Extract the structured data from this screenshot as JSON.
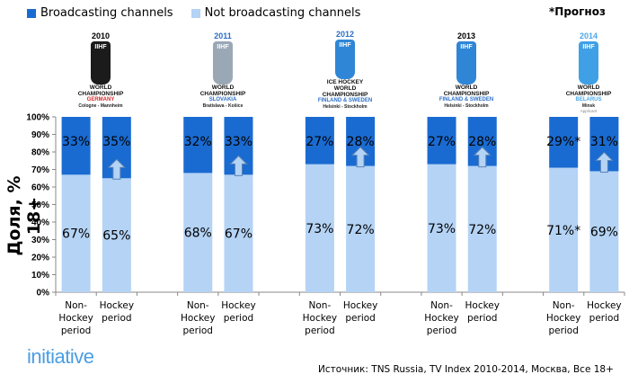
{
  "legend": [
    {
      "label": "Broadcasting channels",
      "color": "#1a6bd1"
    },
    {
      "label": "Not broadcasting channels",
      "color": "#b4d3f5"
    }
  ],
  "forecast_note": "*Прогноз",
  "initiative_logo": "initiative",
  "source": "Источник: TNS Russia, TV Index 2010-2014, Москва, Все 18+",
  "logos": [
    {
      "year": "2010",
      "lines": [
        "WORLD",
        "CHAMPIONSHIP"
      ],
      "country": "GERMANY",
      "country_color": "#d42a2a",
      "city": "Cologne - Mannheim",
      "note": "",
      "shield_color": "#1b1b1b",
      "year_color": "#000000"
    },
    {
      "year": "2011",
      "lines": [
        "WORLD",
        "CHAMPIONSHIP"
      ],
      "country": "SLOVAKIA",
      "country_color": "#2a6fc9",
      "city": "Bratislava - Košice",
      "note": "",
      "shield_color": "#9aa8b6",
      "year_color": "#2a6fc9"
    },
    {
      "year": "2012",
      "lines": [
        "ICE HOCKEY",
        "WORLD",
        "CHAMPIONSHIP"
      ],
      "country": "FINLAND & SWEDEN",
      "country_color": "#2a6fc9",
      "city": "Helsinki - Stockholm",
      "note": "",
      "shield_color": "#2f86d6",
      "year_color": "#2a6fc9"
    },
    {
      "year": "2013",
      "lines": [
        "WORLD",
        "CHAMPIONSHIP"
      ],
      "country": "FINLAND & SWEDEN",
      "country_color": "#2a6fc9",
      "city": "Helsinki - Stockholm",
      "note": "",
      "shield_color": "#2f86d6",
      "year_color": "#000000"
    },
    {
      "year": "2014",
      "lines": [
        "WORLD",
        "CHAMPIONSHIP"
      ],
      "country": "BELARUS",
      "country_color": "#4aa8e8",
      "city": "Minsk",
      "note": "Applicant",
      "shield_color": "#3fa0e6",
      "year_color": "#4aa8e8"
    }
  ],
  "chart_data": {
    "type": "bar",
    "stacked": true,
    "percent_stacked": true,
    "title": "",
    "xlabel": "",
    "ylabel": "Доля, % 18+",
    "ylim": [
      0,
      100
    ],
    "yticks": [
      "0%",
      "10%",
      "20%",
      "30%",
      "40%",
      "50%",
      "60%",
      "70%",
      "80%",
      "90%",
      "100%"
    ],
    "groups": [
      "2010",
      "2011",
      "2012",
      "2013",
      "2014"
    ],
    "categories": [
      "Non-Hockey period",
      "Hockey period",
      "Non-Hockey period",
      "Hockey period",
      "Non-Hockey period",
      "Hockey period",
      "Non-Hockey period",
      "Hockey period",
      "Non-Hockey period",
      "Hockey period"
    ],
    "category_label_lines": [
      [
        "Non-",
        "Hockey",
        "period"
      ],
      [
        "Hockey",
        "period"
      ]
    ],
    "series": [
      {
        "name": "Not broadcasting channels",
        "color": "#b4d3f5",
        "values": [
          67,
          65,
          68,
          67,
          73,
          72,
          73,
          72,
          71,
          69
        ],
        "labels": [
          "67%",
          "65%",
          "68%",
          "67%",
          "73%",
          "72%",
          "73%",
          "72%",
          "71%*",
          "69%"
        ]
      },
      {
        "name": "Broadcasting channels",
        "color": "#1a6bd1",
        "values": [
          33,
          35,
          32,
          33,
          27,
          28,
          27,
          28,
          29,
          31
        ],
        "labels": [
          "33%",
          "35%",
          "32%",
          "33%",
          "27%",
          "28%",
          "27%",
          "28%",
          "29%*",
          "31%"
        ]
      }
    ],
    "annotations": [
      {
        "type": "up-arrow",
        "category_index": 1,
        "meaning": "increase during hockey period"
      },
      {
        "type": "up-arrow",
        "category_index": 3,
        "meaning": "increase during hockey period"
      },
      {
        "type": "up-arrow",
        "category_index": 5,
        "meaning": "increase during hockey period"
      },
      {
        "type": "up-arrow",
        "category_index": 7,
        "meaning": "increase during hockey period"
      },
      {
        "type": "up-arrow",
        "category_index": 9,
        "meaning": "increase during hockey period"
      }
    ],
    "grid": false,
    "legend_position": "top-left"
  }
}
